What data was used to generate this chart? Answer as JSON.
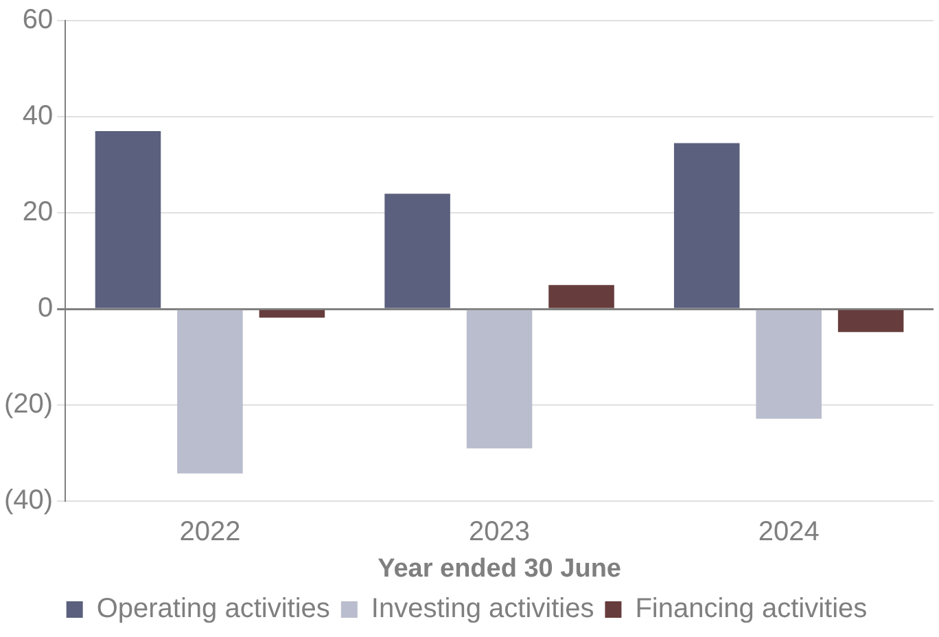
{
  "chart_data": {
    "type": "bar",
    "xlabel": "Year ended 30 June",
    "categories": [
      "2022",
      "2023",
      "2024"
    ],
    "series": [
      {
        "name": "Operating activities",
        "color": "#5a607d",
        "values": [
          37,
          24,
          34.5
        ]
      },
      {
        "name": "Investing activities",
        "color": "#babdcd",
        "values": [
          -34.2,
          -29,
          -22.8
        ]
      },
      {
        "name": "Financing activities",
        "color": "#673c3c",
        "values": [
          -1.8,
          5,
          -4.8
        ]
      }
    ],
    "ylim": [
      -40,
      60
    ],
    "yticks": [
      {
        "value": -40,
        "label": "(40)"
      },
      {
        "value": -20,
        "label": "(20)"
      },
      0,
      20,
      40,
      60
    ],
    "grid": "y",
    "legend": "bottom"
  }
}
